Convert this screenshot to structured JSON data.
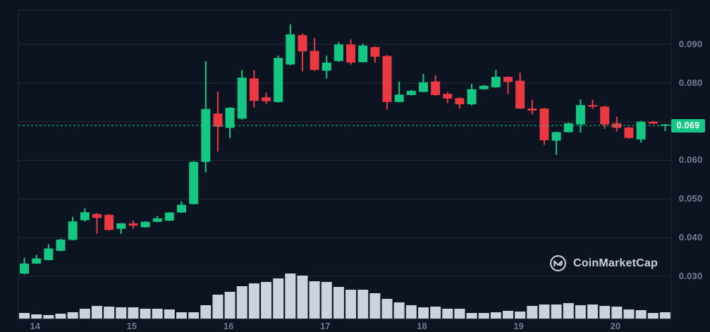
{
  "chart": {
    "current_price_label": "0.069"
  },
  "watermark": {
    "label": "CoinMarketCap"
  },
  "colors": {
    "background": "#0d1421",
    "grid": "#212a3b",
    "up": "#16c784",
    "down": "#ea3943",
    "volume_bar": "#ccd2e0",
    "current_price_line": "#16c784",
    "badge_background": "#16c784",
    "badge_text": "#ffffff",
    "axis_text": "#747e94",
    "watermark_text": "#dde1ec"
  },
  "chart_data": {
    "type": "candlestick",
    "title": "",
    "legend": [],
    "grid": true,
    "x_axis": {
      "tick_labels": [
        "14",
        "15",
        "16",
        "17",
        "18",
        "19",
        "20"
      ],
      "tick_candle_indices": [
        1,
        9,
        17,
        25,
        33,
        41,
        49
      ],
      "candles_per_day": 8
    },
    "y_axis": {
      "side": "right",
      "tick_labels": [
        "0.090",
        "0.080",
        "0.060",
        "0.050",
        "0.040",
        "0.030"
      ],
      "tick_values": [
        0.09,
        0.08,
        0.06,
        0.05,
        0.04,
        0.03
      ],
      "gridline_values": [
        0.09,
        0.08,
        0.07,
        0.06,
        0.05,
        0.04,
        0.03
      ],
      "range": [
        0.0225,
        0.0989
      ]
    },
    "current_price": 0.069,
    "candles_format": [
      "open",
      "high",
      "low",
      "close",
      "volume_rel"
    ],
    "candles": [
      [
        0.0307,
        0.0348,
        0.0305,
        0.0333,
        8
      ],
      [
        0.0333,
        0.0355,
        0.0332,
        0.0346,
        6
      ],
      [
        0.0342,
        0.0383,
        0.0341,
        0.0372,
        5
      ],
      [
        0.0366,
        0.0397,
        0.0365,
        0.0395,
        7
      ],
      [
        0.0394,
        0.0454,
        0.0393,
        0.0442,
        9
      ],
      [
        0.0445,
        0.0476,
        0.0442,
        0.0466,
        14
      ],
      [
        0.0461,
        0.0464,
        0.041,
        0.0451,
        18
      ],
      [
        0.0459,
        0.0461,
        0.0418,
        0.042,
        17
      ],
      [
        0.0423,
        0.0438,
        0.041,
        0.0437,
        16
      ],
      [
        0.0437,
        0.0444,
        0.0423,
        0.0431,
        16
      ],
      [
        0.0427,
        0.0442,
        0.0426,
        0.0441,
        14
      ],
      [
        0.0441,
        0.0456,
        0.044,
        0.045,
        14
      ],
      [
        0.0444,
        0.0466,
        0.0443,
        0.0465,
        13
      ],
      [
        0.0465,
        0.0494,
        0.0464,
        0.0485,
        9
      ],
      [
        0.0487,
        0.0598,
        0.0486,
        0.0596,
        9
      ],
      [
        0.0596,
        0.0857,
        0.0569,
        0.0733,
        19
      ],
      [
        0.0721,
        0.0778,
        0.0623,
        0.0687,
        34
      ],
      [
        0.0684,
        0.0738,
        0.0657,
        0.0736,
        38
      ],
      [
        0.0708,
        0.0834,
        0.0705,
        0.0814,
        46
      ],
      [
        0.0812,
        0.0834,
        0.0737,
        0.0754,
        50
      ],
      [
        0.0763,
        0.0775,
        0.0746,
        0.0753,
        52
      ],
      [
        0.0751,
        0.0871,
        0.0749,
        0.0865,
        57
      ],
      [
        0.0848,
        0.0952,
        0.0846,
        0.0926,
        64
      ],
      [
        0.0924,
        0.0928,
        0.083,
        0.0882,
        61
      ],
      [
        0.0883,
        0.0917,
        0.0832,
        0.0834,
        53
      ],
      [
        0.0832,
        0.0871,
        0.0812,
        0.0853,
        52
      ],
      [
        0.0857,
        0.0906,
        0.0855,
        0.09,
        45
      ],
      [
        0.09,
        0.0913,
        0.0848,
        0.0853,
        41
      ],
      [
        0.0854,
        0.0902,
        0.0853,
        0.0897,
        41
      ],
      [
        0.0893,
        0.0895,
        0.0853,
        0.0868,
        36
      ],
      [
        0.087,
        0.0872,
        0.0731,
        0.0751,
        28
      ],
      [
        0.0751,
        0.0804,
        0.075,
        0.077,
        23
      ],
      [
        0.0769,
        0.0782,
        0.0768,
        0.078,
        19
      ],
      [
        0.0777,
        0.0824,
        0.0776,
        0.0802,
        16
      ],
      [
        0.0804,
        0.082,
        0.0767,
        0.0769,
        17
      ],
      [
        0.0772,
        0.0777,
        0.0748,
        0.076,
        14
      ],
      [
        0.0761,
        0.0763,
        0.0734,
        0.0745,
        14
      ],
      [
        0.0745,
        0.0798,
        0.0742,
        0.0784,
        8
      ],
      [
        0.0784,
        0.0795,
        0.0783,
        0.0793,
        8
      ],
      [
        0.0789,
        0.0834,
        0.0788,
        0.0816,
        9
      ],
      [
        0.0816,
        0.0817,
        0.0772,
        0.0803,
        11
      ],
      [
        0.0806,
        0.0827,
        0.0733,
        0.0734,
        10
      ],
      [
        0.0734,
        0.0757,
        0.0719,
        0.0729,
        18
      ],
      [
        0.0734,
        0.0736,
        0.064,
        0.0652,
        20
      ],
      [
        0.0651,
        0.0674,
        0.0614,
        0.0673,
        20
      ],
      [
        0.0673,
        0.0698,
        0.0672,
        0.0696,
        22
      ],
      [
        0.0693,
        0.0758,
        0.0672,
        0.0743,
        19
      ],
      [
        0.0743,
        0.0757,
        0.0733,
        0.0739,
        20
      ],
      [
        0.0739,
        0.0741,
        0.0682,
        0.0693,
        18
      ],
      [
        0.0696,
        0.0713,
        0.0675,
        0.0684,
        17
      ],
      [
        0.0685,
        0.0687,
        0.0656,
        0.0658,
        13
      ],
      [
        0.0654,
        0.0702,
        0.0646,
        0.07,
        12
      ],
      [
        0.07,
        0.0702,
        0.0694,
        0.0695,
        8
      ],
      [
        0.069,
        0.0694,
        0.0676,
        0.0693,
        9
      ]
    ]
  }
}
